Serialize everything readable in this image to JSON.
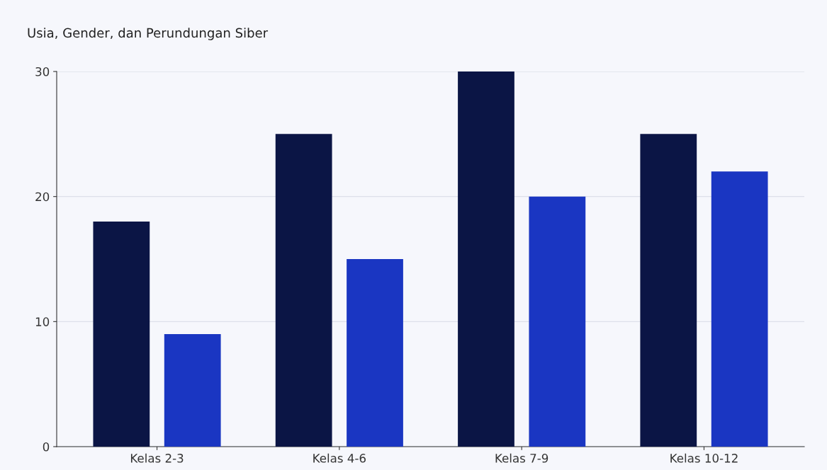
{
  "chart_data": {
    "type": "bar",
    "title": "Usia, Gender, dan Perundungan Siber",
    "categories": [
      "Kelas 2-3",
      "Kelas 4-6",
      "Kelas 7-9",
      "Kelas 10-12"
    ],
    "series": [
      {
        "color": "#0b1545",
        "values": [
          18,
          25,
          30,
          25
        ]
      },
      {
        "color": "#1a36c2",
        "values": [
          9,
          15,
          20,
          22
        ]
      }
    ],
    "ylim": [
      0,
      30
    ],
    "yticks": [
      0,
      10,
      20,
      30
    ],
    "grid": "y"
  }
}
